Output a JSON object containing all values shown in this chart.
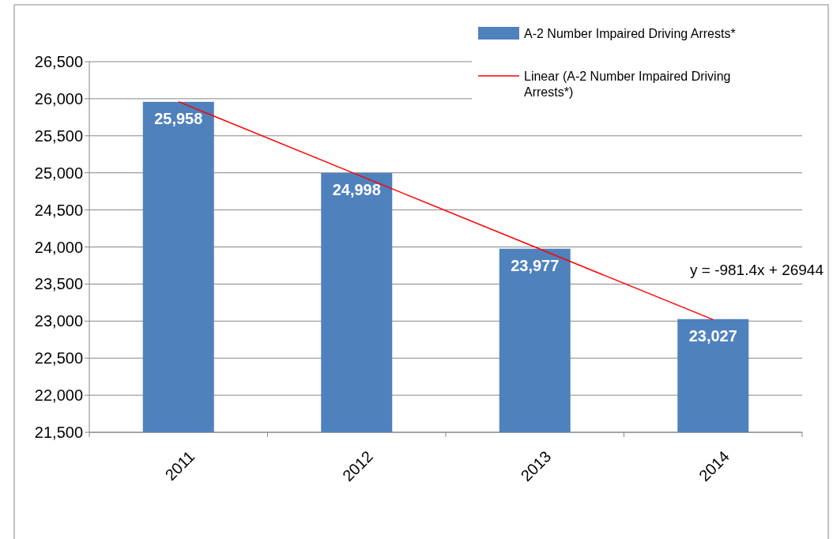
{
  "chart_data": {
    "type": "bar",
    "categories": [
      "2011",
      "2012",
      "2013",
      "2014"
    ],
    "series": [
      {
        "name": "A-2 Number Impaired Driving Arrests*",
        "color": "#4f81bd",
        "values": [
          25958,
          24998,
          23977,
          23027
        ],
        "value_labels": [
          "25,958",
          "24,998",
          "23,977",
          "23,027"
        ]
      },
      {
        "type": "line",
        "name": "Linear (A-2 Number Impaired Driving Arrests*)",
        "color": "#ff0000",
        "values": [
          25960,
          24980,
          24000,
          23020
        ]
      }
    ],
    "ylim": [
      21500,
      26500
    ],
    "yticks": [
      {
        "value": 21500,
        "label": "21,500"
      },
      {
        "value": 22000,
        "label": "22,000"
      },
      {
        "value": 22500,
        "label": "22,500"
      },
      {
        "value": 23000,
        "label": "23,000"
      },
      {
        "value": 23500,
        "label": "23,500"
      },
      {
        "value": 24000,
        "label": "24,000"
      },
      {
        "value": 24500,
        "label": "24,500"
      },
      {
        "value": 25000,
        "label": "25,000"
      },
      {
        "value": 25500,
        "label": "25,500"
      },
      {
        "value": 26000,
        "label": "26,000"
      },
      {
        "value": 26500,
        "label": "26,500"
      }
    ],
    "grid": "y",
    "legend": "top right",
    "line_style": "solid",
    "marker": "none",
    "annotations": [
      "y = -981.4x + 26944"
    ]
  }
}
